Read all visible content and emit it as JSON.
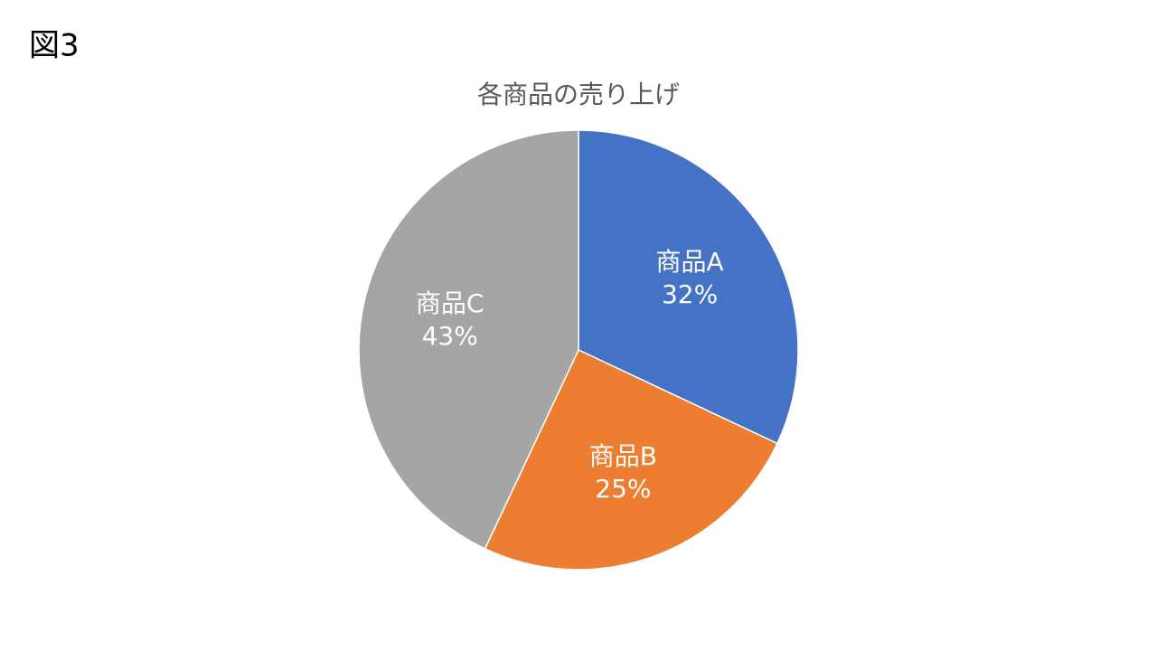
{
  "label": "図3",
  "chart_data": {
    "type": "pie",
    "title": "各商品の売り上げ",
    "categories": [
      "商品A",
      "商品B",
      "商品C"
    ],
    "values": [
      32,
      25,
      43
    ],
    "value_labels": [
      "32%",
      "25%",
      "43%"
    ],
    "colors": [
      "#4472c4",
      "#ed7d31",
      "#a5a5a5"
    ]
  }
}
